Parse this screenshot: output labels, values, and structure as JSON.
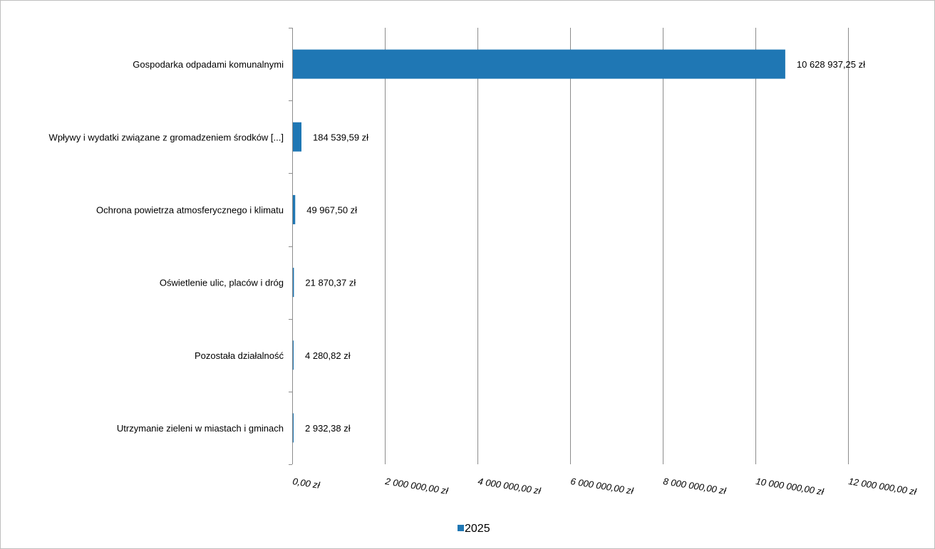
{
  "chart_data": {
    "type": "bar",
    "orientation": "horizontal",
    "categories": [
      "Gospodarka odpadami komunalnymi",
      "Wpływy i wydatki związane z gromadzeniem środków [...]",
      "Ochrona powietrza atmosferycznego i klimatu",
      "Oświetlenie ulic, placów i dróg",
      "Pozostała działalność",
      "Utrzymanie zieleni w miastach i gminach"
    ],
    "series": [
      {
        "name": "2025",
        "color": "#1f77b4",
        "values": [
          10628937.25,
          184539.59,
          49967.5,
          21870.37,
          4280.82,
          2932.38
        ],
        "labels": [
          "10 628 937,25 zł",
          "184 539,59 zł",
          "49 967,50 zł",
          "21 870,37 zł",
          "4 280,82 zł",
          "2 932,38 zł"
        ]
      }
    ],
    "xlim": [
      0,
      12000000
    ],
    "x_ticks": [
      0,
      2000000,
      4000000,
      6000000,
      8000000,
      10000000,
      12000000
    ],
    "x_tick_labels": [
      "0,00 zł",
      "2 000 000,00 zł",
      "4 000 000,00 zł",
      "6 000 000,00 zł",
      "8 000 000,00 zł",
      "10 000 000,00 zł",
      "12 000 000,00 zł"
    ],
    "title": "",
    "xlabel": "",
    "ylabel": "",
    "grid": true,
    "legend_position": "bottom-center"
  }
}
